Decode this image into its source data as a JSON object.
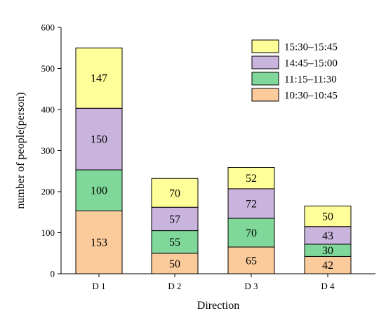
{
  "chart_data": {
    "type": "bar",
    "stacked": true,
    "xlabel": "Direction",
    "ylabel": "number of people(person)",
    "ylim": [
      0,
      600
    ],
    "yticks": [
      0,
      100,
      200,
      300,
      400,
      500,
      600
    ],
    "categories": [
      "D 1",
      "D 2",
      "D 3",
      "D 4"
    ],
    "series": [
      {
        "name": "10:30–10:45",
        "color": "#FBCB9B",
        "values": [
          153,
          50,
          65,
          42
        ]
      },
      {
        "name": "11:15–11:30",
        "color": "#7FD89A",
        "values": [
          100,
          55,
          70,
          30
        ]
      },
      {
        "name": "14:45–15:00",
        "color": "#C8B4DD",
        "values": [
          150,
          57,
          72,
          43
        ]
      },
      {
        "name": "15:30–15:45",
        "color": "#FFFF99",
        "values": [
          147,
          70,
          52,
          50
        ]
      }
    ],
    "legend_position": "top-right",
    "grid": false
  }
}
